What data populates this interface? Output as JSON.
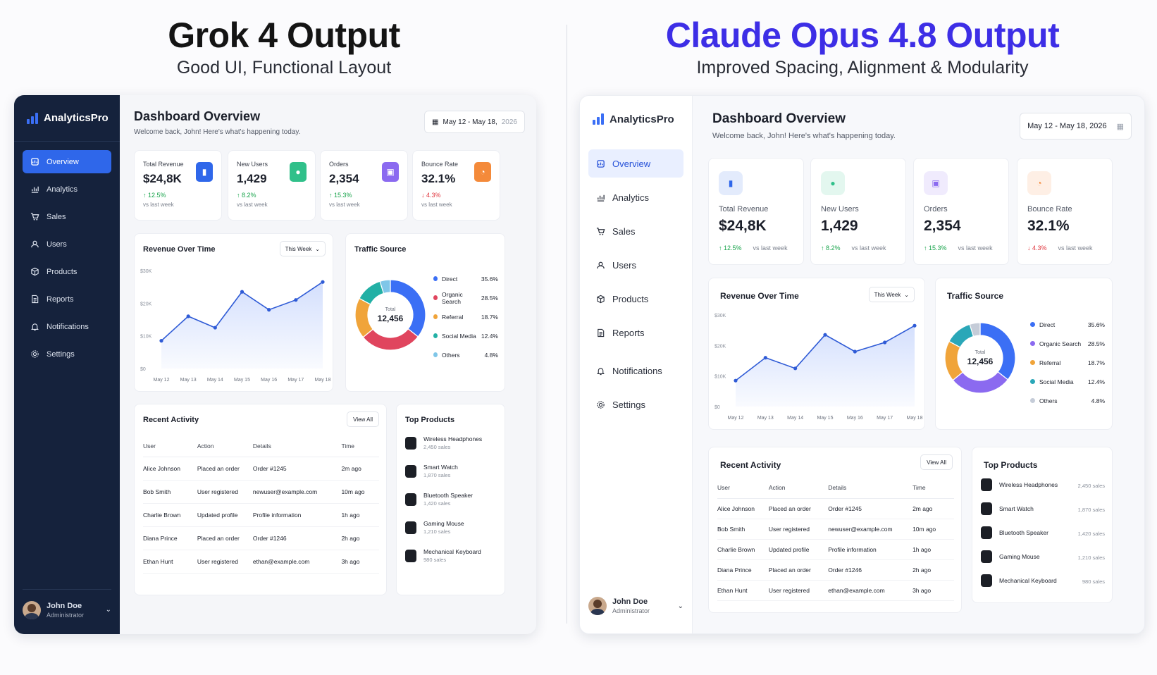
{
  "left": {
    "heading": "Grok 4 Output",
    "subheading": "Good UI, Functional Layout"
  },
  "right": {
    "heading": "Claude Opus 4.8 Output",
    "subheading": "Improved Spacing, Alignment & Modularity"
  },
  "app": {
    "brand": "AnalyticsPro",
    "nav": [
      "Overview",
      "Analytics",
      "Sales",
      "Users",
      "Products",
      "Reports",
      "Notifications",
      "Settings"
    ],
    "nav_icons": [
      "dashboard-icon",
      "analytics-icon",
      "cart-icon",
      "users-icon",
      "box-icon",
      "report-icon",
      "bell-icon",
      "gear-icon"
    ],
    "profile": {
      "name": "John Doe",
      "role": "Administrator"
    },
    "title": "Dashboard Overview",
    "subtitle": "Welcome back, John! Here's what's happening today.",
    "date_range": "May 12 - May 18, 2026",
    "date_range_main": "May 12 - May 18,",
    "date_range_year": "2026",
    "kpis": [
      {
        "label": "Total Revenue",
        "value": "$24,8K",
        "delta": "12.5%",
        "dir": "up",
        "vs": "vs last week",
        "color": "#2f67ea",
        "icon": "chart-icon"
      },
      {
        "label": "New Users",
        "value": "1,429",
        "delta": "8.2%",
        "dir": "up",
        "vs": "vs last week",
        "color": "#30c08a",
        "icon": "user-icon"
      },
      {
        "label": "Orders",
        "value": "2,354",
        "delta": "15.3%",
        "dir": "up",
        "vs": "vs last week",
        "color": "#8b6af0",
        "icon": "bag-icon"
      },
      {
        "label": "Bounce Rate",
        "value": "32.1%",
        "delta": "4.3%",
        "dir": "down",
        "vs": "vs last week",
        "color": "#f48a3a",
        "icon": "clock-icon"
      }
    ],
    "revenue_chart": {
      "title": "Revenue Over Time",
      "range_label": "This Week"
    },
    "traffic": {
      "title": "Traffic Source",
      "total_label": "Total",
      "total_value": "12,456"
    },
    "activity": {
      "title": "Recent Activity",
      "view_all": "View All",
      "columns": [
        "User",
        "Action",
        "Details",
        "Time"
      ],
      "rows": [
        [
          "Alice Johnson",
          "Placed an order",
          "Order #1245",
          "2m ago"
        ],
        [
          "Bob Smith",
          "User registered",
          "newuser@example.com",
          "10m ago"
        ],
        [
          "Charlie Brown",
          "Updated profile",
          "Profile information",
          "1h ago"
        ],
        [
          "Diana Prince",
          "Placed an order",
          "Order #1246",
          "2h ago"
        ],
        [
          "Ethan Hunt",
          "User registered",
          "ethan@example.com",
          "3h ago"
        ]
      ]
    },
    "top_products": {
      "title": "Top Products",
      "items": [
        {
          "name": "Wireless Headphones",
          "sales": "2,450 sales"
        },
        {
          "name": "Smart Watch",
          "sales": "1,870 sales"
        },
        {
          "name": "Bluetooth Speaker",
          "sales": "1,420 sales"
        },
        {
          "name": "Gaming Mouse",
          "sales": "1,210 sales"
        },
        {
          "name": "Mechanical Keyboard",
          "sales": "980 sales"
        }
      ]
    }
  },
  "chart_data": [
    {
      "type": "area",
      "title": "Revenue Over Time",
      "categories": [
        "May 12",
        "May 13",
        "May 14",
        "May 15",
        "May 16",
        "May 17",
        "May 18"
      ],
      "yticks": [
        "$0",
        "$10K",
        "$20K",
        "$30K"
      ],
      "ylim": [
        0,
        30000
      ],
      "values": [
        8500,
        16000,
        12500,
        23500,
        18000,
        21000,
        26500
      ]
    },
    {
      "type": "pie",
      "title": "Traffic Source",
      "labels": [
        "Direct",
        "Organic Search",
        "Referral",
        "Social Media",
        "Others"
      ],
      "values": [
        35.6,
        28.5,
        18.7,
        12.4,
        4.8
      ],
      "display": [
        "35.6%",
        "28.5%",
        "18.7%",
        "12.4%",
        "4.8%"
      ],
      "colors_left": [
        "#3b6ff5",
        "#e0455e",
        "#f0a43a",
        "#22b0a5",
        "#7fc6e8"
      ],
      "colors_right": [
        "#3b6ff5",
        "#8b6af0",
        "#f0a43a",
        "#2aa7b8",
        "#c5ccd8"
      ]
    }
  ]
}
